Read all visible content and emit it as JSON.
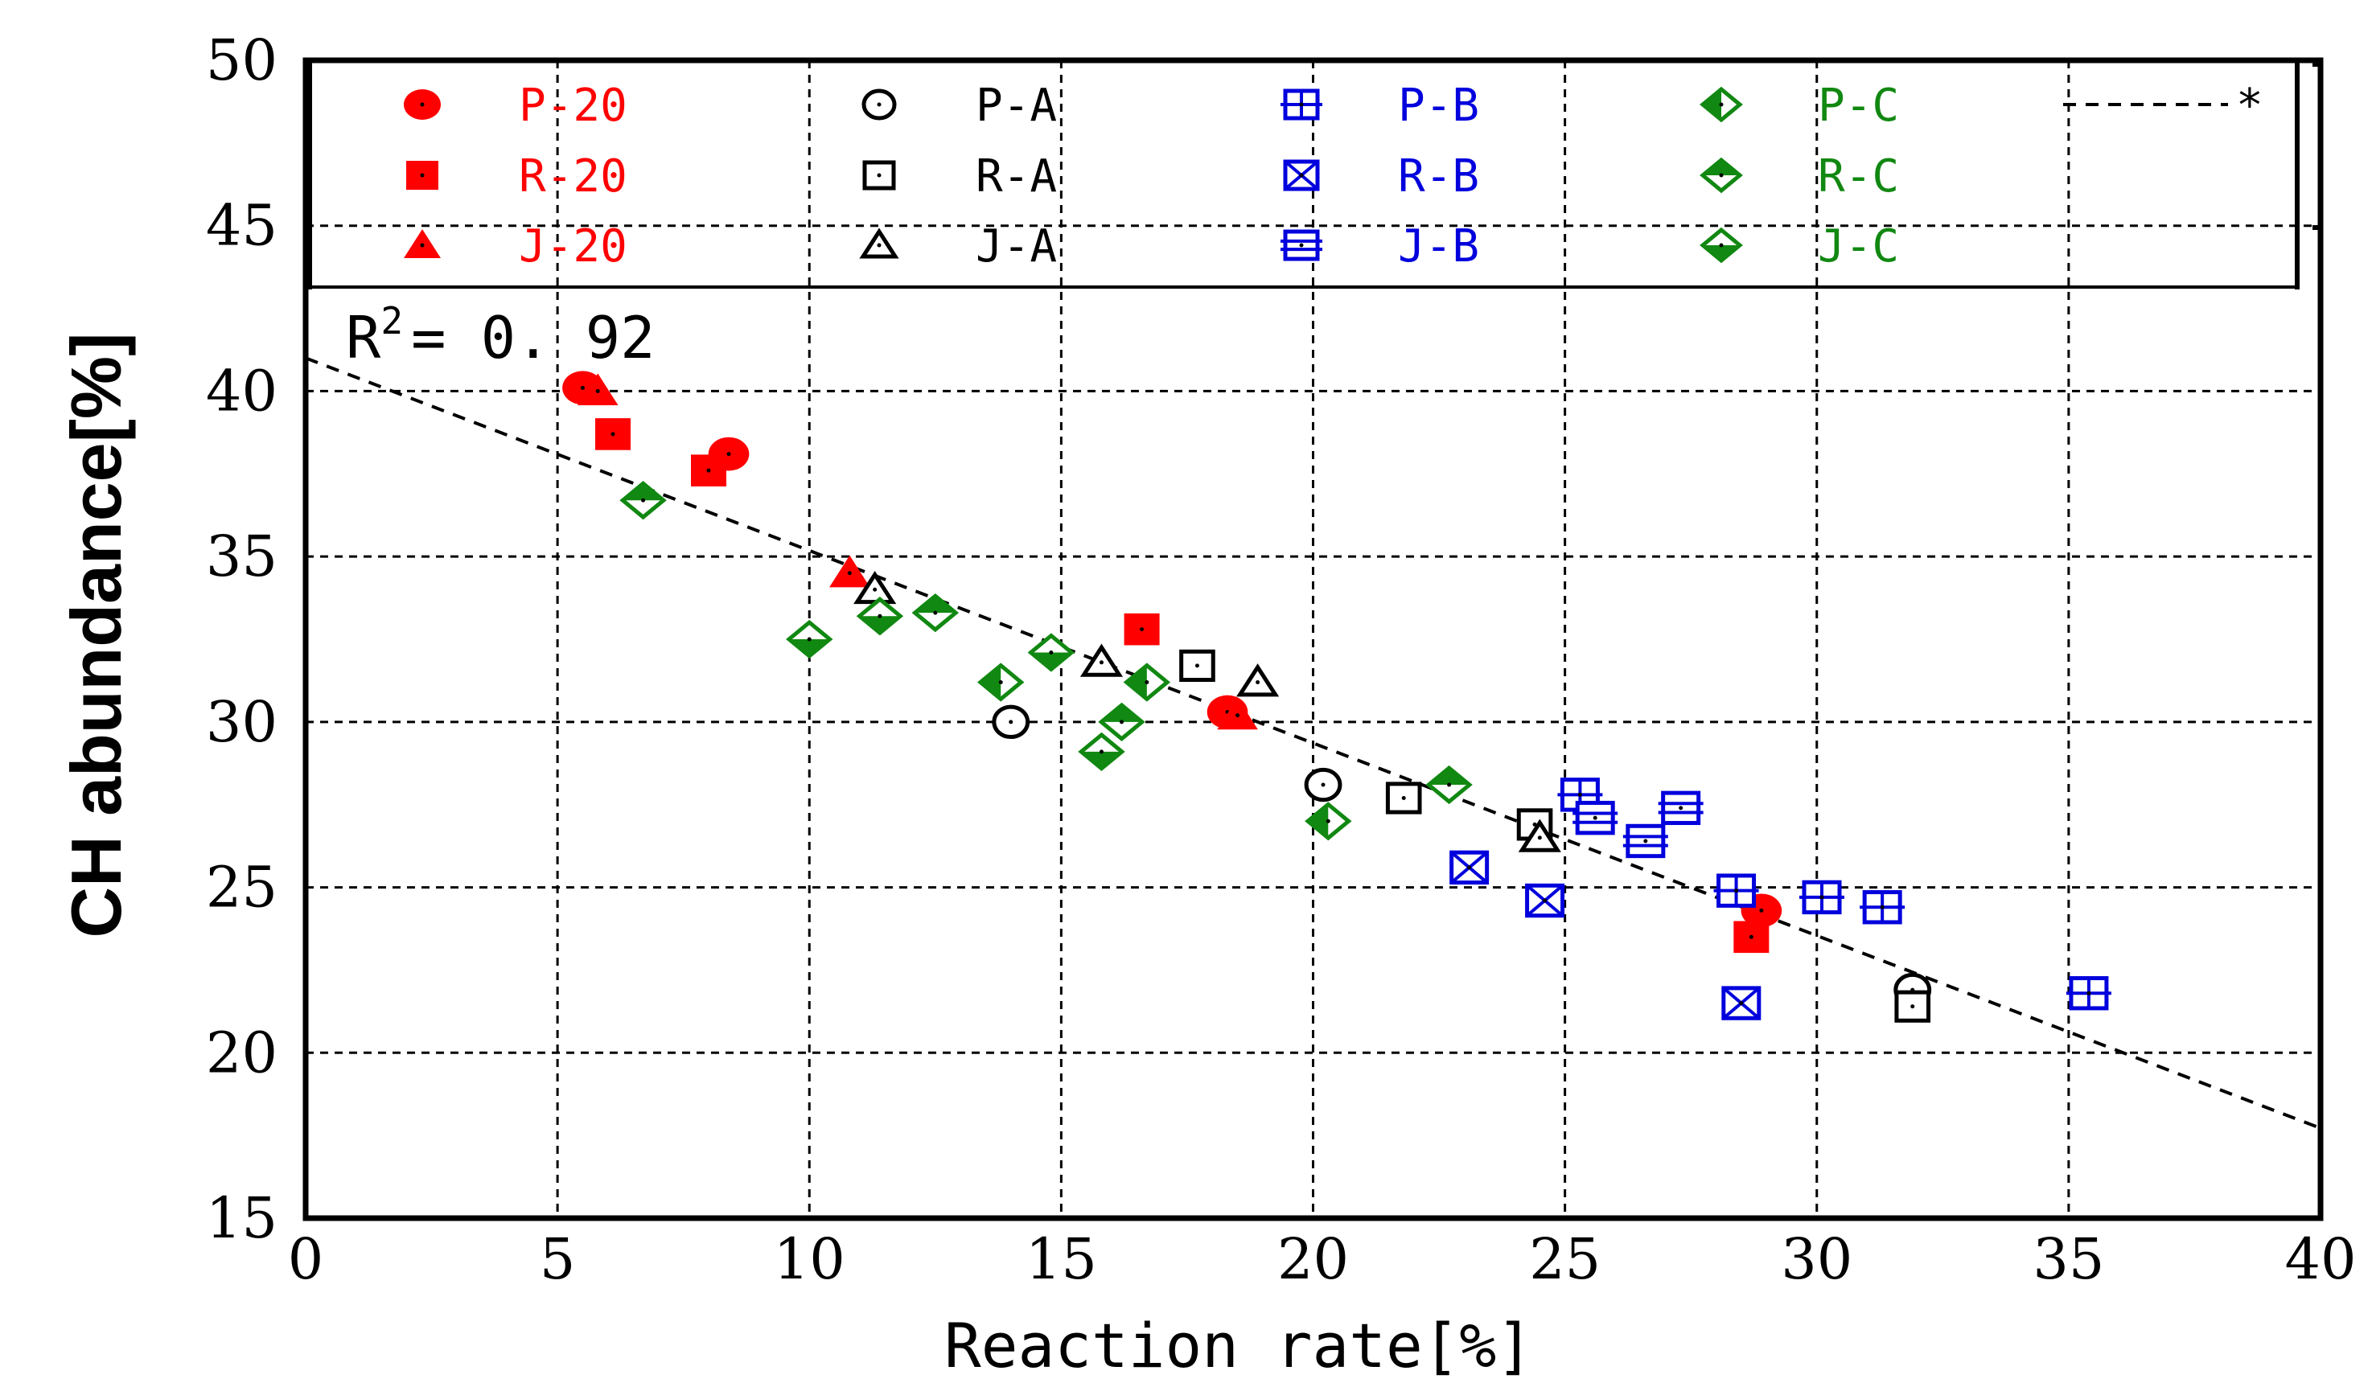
{
  "chart_data": {
    "type": "scatter",
    "title": "",
    "xlabel": "Reaction rate[%]",
    "ylabel": "CH abundance[%]",
    "xlim": [
      0,
      40
    ],
    "ylim": [
      15,
      50
    ],
    "xticks": [
      "0",
      "5",
      "10",
      "15",
      "20",
      "25",
      "30",
      "35",
      "40"
    ],
    "yticks": [
      "15",
      "20",
      "25",
      "30",
      "35",
      "40",
      "45",
      "50"
    ],
    "xtick_values": [
      0,
      5,
      10,
      15,
      20,
      25,
      30,
      35,
      40
    ],
    "ytick_values": [
      15,
      20,
      25,
      30,
      35,
      40,
      45,
      50
    ],
    "grid": true,
    "annotation": "R² = 0.92",
    "annotation_base": "R",
    "annotation_sup": "2",
    "annotation_rest": "= 0. 92",
    "trendline": {
      "label": "*",
      "slope": -0.582,
      "intercept": 41.0,
      "x_range": [
        0,
        40
      ]
    },
    "colors": {
      "red": "#ff0000",
      "black": "#000000",
      "blue": "#0000dd",
      "green": "#118811"
    },
    "series": [
      {
        "name": "P-20",
        "color": "#ff0000",
        "marker": "circle-filled",
        "points": [
          [
            5.5,
            40.1
          ],
          [
            8.4,
            38.1
          ],
          [
            18.3,
            30.3
          ],
          [
            28.9,
            24.3
          ]
        ]
      },
      {
        "name": "R-20",
        "color": "#ff0000",
        "marker": "square-filled",
        "points": [
          [
            6.1,
            38.7
          ],
          [
            8.0,
            37.6
          ],
          [
            16.6,
            32.8
          ],
          [
            28.7,
            23.5
          ]
        ]
      },
      {
        "name": "J-20",
        "color": "#ff0000",
        "marker": "triangle-filled",
        "points": [
          [
            5.8,
            40.0
          ],
          [
            10.8,
            34.5
          ],
          [
            18.5,
            30.2
          ]
        ]
      },
      {
        "name": "P-A",
        "color": "#000000",
        "marker": "circle-open",
        "points": [
          [
            14.0,
            30.0
          ],
          [
            20.2,
            28.1
          ],
          [
            31.9,
            21.9
          ]
        ]
      },
      {
        "name": "R-A",
        "color": "#000000",
        "marker": "square-open",
        "points": [
          [
            17.7,
            31.7
          ],
          [
            21.8,
            27.7
          ],
          [
            24.4,
            26.9
          ],
          [
            31.9,
            21.4
          ]
        ]
      },
      {
        "name": "J-A",
        "color": "#000000",
        "marker": "triangle-open",
        "points": [
          [
            11.3,
            34.0
          ],
          [
            15.8,
            31.8
          ],
          [
            18.9,
            31.2
          ],
          [
            24.5,
            26.5
          ]
        ]
      },
      {
        "name": "P-B",
        "color": "#0000dd",
        "marker": "square-plus",
        "points": [
          [
            25.3,
            27.8
          ],
          [
            28.4,
            24.9
          ],
          [
            30.1,
            24.7
          ],
          [
            31.3,
            24.4
          ],
          [
            35.4,
            21.8
          ]
        ]
      },
      {
        "name": "R-B",
        "color": "#0000dd",
        "marker": "square-x",
        "points": [
          [
            23.1,
            25.6
          ],
          [
            24.6,
            24.6
          ],
          [
            28.5,
            21.5
          ]
        ]
      },
      {
        "name": "J-B",
        "color": "#0000dd",
        "marker": "square-equal",
        "points": [
          [
            25.6,
            27.1
          ],
          [
            26.6,
            26.4
          ],
          [
            27.3,
            27.4
          ]
        ]
      },
      {
        "name": "P-C",
        "color": "#118811",
        "marker": "diamond-half-left",
        "points": [
          [
            13.8,
            31.2
          ],
          [
            16.7,
            31.2
          ],
          [
            20.3,
            27.0
          ]
        ]
      },
      {
        "name": "R-C",
        "color": "#118811",
        "marker": "diamond-half-top",
        "points": [
          [
            6.7,
            36.7
          ],
          [
            12.5,
            33.3
          ],
          [
            16.2,
            30.0
          ],
          [
            22.7,
            28.1
          ]
        ]
      },
      {
        "name": "J-C",
        "color": "#118811",
        "marker": "diamond-half-bottom",
        "points": [
          [
            10.0,
            32.5
          ],
          [
            11.4,
            33.2
          ],
          [
            14.8,
            32.1
          ],
          [
            15.8,
            29.1
          ]
        ]
      }
    ],
    "legend": {
      "placement": "top (inside plot)",
      "entries": [
        "P-20",
        "R-20",
        "J-20",
        "P-A",
        "R-A",
        "J-A",
        "P-B",
        "R-B",
        "J-B",
        "P-C",
        "R-C",
        "J-C",
        "*"
      ]
    }
  }
}
